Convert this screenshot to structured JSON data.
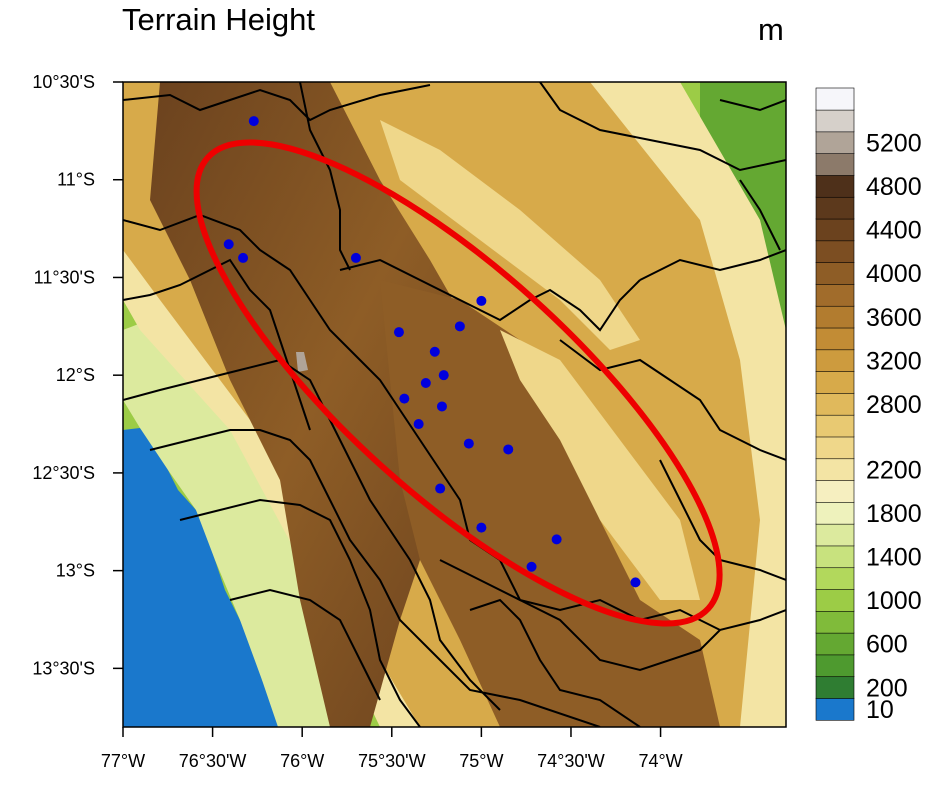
{
  "title": "Terrain Height",
  "unit": "m",
  "colors": {
    "ellipse": "#ee0000",
    "station": "#0000dd",
    "ocean": "#1a78cc",
    "boundary": "#000000"
  },
  "map": {
    "lon_range": [
      -77.0,
      -73.3
    ],
    "lat_range": [
      -13.8,
      -10.5
    ],
    "x_ticks": [
      {
        "value": -77.0,
        "label": "77°W"
      },
      {
        "value": -76.5,
        "label": "76°30'W"
      },
      {
        "value": -76.0,
        "label": "76°W"
      },
      {
        "value": -75.5,
        "label": "75°30'W"
      },
      {
        "value": -75.0,
        "label": "75°W"
      },
      {
        "value": -74.5,
        "label": "74°30'W"
      },
      {
        "value": -74.0,
        "label": "74°W"
      }
    ],
    "y_ticks": [
      {
        "value": -10.5,
        "label": "10°30'S"
      },
      {
        "value": -11.0,
        "label": "11°S"
      },
      {
        "value": -11.5,
        "label": "11°30'S"
      },
      {
        "value": -12.0,
        "label": "12°S"
      },
      {
        "value": -12.5,
        "label": "12°30'S"
      },
      {
        "value": -13.0,
        "label": "13°S"
      },
      {
        "value": -13.5,
        "label": "13°30'S"
      }
    ],
    "stations": [
      {
        "lon": -76.27,
        "lat": -10.7
      },
      {
        "lon": -76.41,
        "lat": -11.33
      },
      {
        "lon": -76.33,
        "lat": -11.4
      },
      {
        "lon": -75.7,
        "lat": -11.4
      },
      {
        "lon": -75.0,
        "lat": -11.62
      },
      {
        "lon": -75.12,
        "lat": -11.75
      },
      {
        "lon": -75.46,
        "lat": -11.78
      },
      {
        "lon": -75.26,
        "lat": -11.88
      },
      {
        "lon": -75.21,
        "lat": -12.0
      },
      {
        "lon": -75.31,
        "lat": -12.04
      },
      {
        "lon": -75.43,
        "lat": -12.12
      },
      {
        "lon": -75.22,
        "lat": -12.16
      },
      {
        "lon": -75.35,
        "lat": -12.25
      },
      {
        "lon": -75.07,
        "lat": -12.35
      },
      {
        "lon": -74.85,
        "lat": -12.38
      },
      {
        "lon": -75.23,
        "lat": -12.58
      },
      {
        "lon": -75.0,
        "lat": -12.78
      },
      {
        "lon": -74.58,
        "lat": -12.84
      },
      {
        "lon": -74.72,
        "lat": -12.98
      },
      {
        "lon": -74.14,
        "lat": -13.06
      }
    ],
    "highlight_ellipse": {
      "center_lon": -75.13,
      "center_lat": -12.04,
      "semi_major_deg": 1.88,
      "semi_minor_deg": 0.63,
      "rotation_deg": 42
    }
  },
  "colorbar": {
    "levels": [
      10,
      200,
      400,
      600,
      800,
      1000,
      1200,
      1400,
      1600,
      1800,
      2000,
      2200,
      2400,
      2600,
      2800,
      3000,
      3200,
      3400,
      3600,
      3800,
      4000,
      4200,
      4400,
      4600,
      4800,
      5000,
      5200,
      5400,
      5600
    ],
    "labels": [
      "10",
      "200",
      "600",
      "1000",
      "1400",
      "1800",
      "2200",
      "2800",
      "3200",
      "3600",
      "4000",
      "4400",
      "4800",
      "5200"
    ],
    "colors": [
      "#1a78cc",
      "#2f7d32",
      "#4e9a2f",
      "#64a832",
      "#80bb3a",
      "#9ccc46",
      "#b2d85c",
      "#c8e27e",
      "#dcea9e",
      "#eef2bc",
      "#f6efc0",
      "#f3e4a4",
      "#efd78a",
      "#e8c972",
      "#e0b95c",
      "#d7aa4a",
      "#cd9b3e",
      "#c28c35",
      "#b27c2f",
      "#a16c2b",
      "#8e5d26",
      "#7c4e22",
      "#6b421e",
      "#5c391c",
      "#4e301a",
      "#8c7a6a",
      "#b0a498",
      "#d6d0ca",
      "#f6f6fa"
    ]
  }
}
